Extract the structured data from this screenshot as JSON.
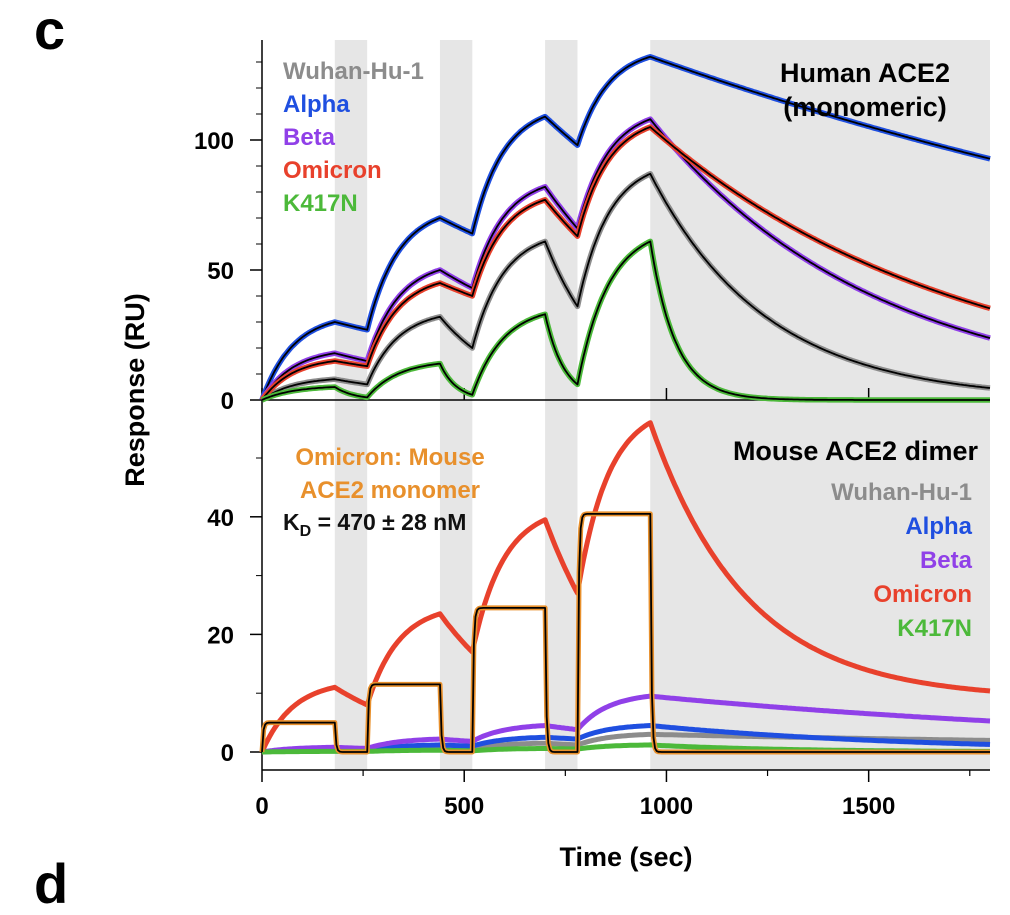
{
  "panel_letters": {
    "top": "c",
    "bottom": "d"
  },
  "chart_data": {
    "type": "line",
    "xlabel": "Time (sec)",
    "ylabel": "Response (RU)",
    "xlim": [
      0,
      1800
    ],
    "x_ticks": [
      "0",
      "500",
      "1000",
      "1500"
    ],
    "x_tick_values": [
      0,
      500,
      1000,
      1500
    ],
    "injection_windows": [
      [
        0,
        180
      ],
      [
        260,
        440
      ],
      [
        520,
        700
      ],
      [
        780,
        960
      ]
    ],
    "dissociation_start": 960,
    "panels": [
      {
        "id": "top",
        "title_lines": [
          "Human ACE2",
          "(monomeric)"
        ],
        "ylim": [
          0,
          135
        ],
        "y_ticks": [
          "0",
          "50",
          "100"
        ],
        "y_tick_values": [
          0,
          50,
          100
        ],
        "legend": [
          "Wuhan-Hu-1",
          "Alpha",
          "Beta",
          "Omicron",
          "K417N"
        ],
        "series": [
          {
            "name": "Wuhan-Hu-1",
            "color": "#8c8c8c",
            "kind": "kinetic",
            "peaks": [
              8,
              32,
              61,
              87
            ],
            "bases": [
              6,
              20,
              36
            ],
            "koff": 0.0035
          },
          {
            "name": "Alpha",
            "color": "#1f4fe0",
            "kind": "kinetic",
            "peaks": [
              30,
              70,
              109,
              132
            ],
            "bases": [
              27,
              64,
              98
            ],
            "koff": 0.00042
          },
          {
            "name": "Beta",
            "color": "#9040e8",
            "kind": "kinetic",
            "peaks": [
              18,
              50,
              82,
              108
            ],
            "bases": [
              15,
              43,
              66
            ],
            "koff": 0.0018
          },
          {
            "name": "Omicron",
            "color": "#e8412c",
            "kind": "kinetic",
            "peaks": [
              15,
              45,
              77,
              105
            ],
            "bases": [
              13,
              40,
              63
            ],
            "koff": 0.0013
          },
          {
            "name": "K417N",
            "color": "#4cb93a",
            "kind": "kinetic",
            "peaks": [
              5,
              14,
              33,
              61
            ],
            "bases": [
              1,
              2,
              6
            ],
            "koff": 0.016
          }
        ]
      },
      {
        "id": "bottom",
        "title_lines": [
          "Mouse ACE2 dimer"
        ],
        "ylim": [
          -3,
          58
        ],
        "y_ticks": [
          "0",
          "20",
          "40"
        ],
        "y_tick_values": [
          0,
          20,
          40
        ],
        "legend": [
          "Wuhan-Hu-1",
          "Alpha",
          "Beta",
          "Omicron",
          "K417N"
        ],
        "annotation_lines": [
          "Omicron: Mouse",
          "ACE2 monomer"
        ],
        "annotation_color": "#e8902c",
        "kd_label": {
          "prefix": "K",
          "subscript": "D",
          "rest": " = 470 ± 28 nM"
        },
        "series": [
          {
            "name": "Wuhan-Hu-1",
            "color": "#8c8c8c",
            "kind": "kinetic",
            "peaks": [
              0.3,
              0.8,
              1.5,
              3.0
            ],
            "bases": [
              0.2,
              0.6,
              1.2
            ],
            "koff": 0.0005
          },
          {
            "name": "Alpha",
            "color": "#1f4fe0",
            "kind": "kinetic",
            "peaks": [
              0.4,
              1.2,
              2.5,
              4.5
            ],
            "bases": [
              0.3,
              1.0,
              2.2
            ],
            "koff": 0.0015
          },
          {
            "name": "Beta",
            "color": "#9040e8",
            "kind": "kinetic",
            "peaks": [
              0.8,
              2.2,
              4.5,
              9.5
            ],
            "bases": [
              0.6,
              1.8,
              3.8
            ],
            "koff": 0.0007
          },
          {
            "name": "Omicron",
            "color": "#e8412c",
            "kind": "kinetic",
            "peaks": [
              11,
              23.5,
              39.5,
              56
            ],
            "bases": [
              8,
              17,
              27
            ],
            "koff": 0.0042,
            "plateau": 9
          },
          {
            "name": "K417N",
            "color": "#4cb93a",
            "kind": "kinetic",
            "peaks": [
              0.1,
              0.3,
              0.6,
              1.2
            ],
            "bases": [
              0.1,
              0.2,
              0.5
            ],
            "koff": 0.003
          },
          {
            "name": "Omicron: Mouse ACE2 monomer",
            "color": "#e8902c",
            "kind": "steady",
            "levels": [
              5,
              11.5,
              24.5,
              40.5
            ]
          }
        ]
      }
    ]
  }
}
